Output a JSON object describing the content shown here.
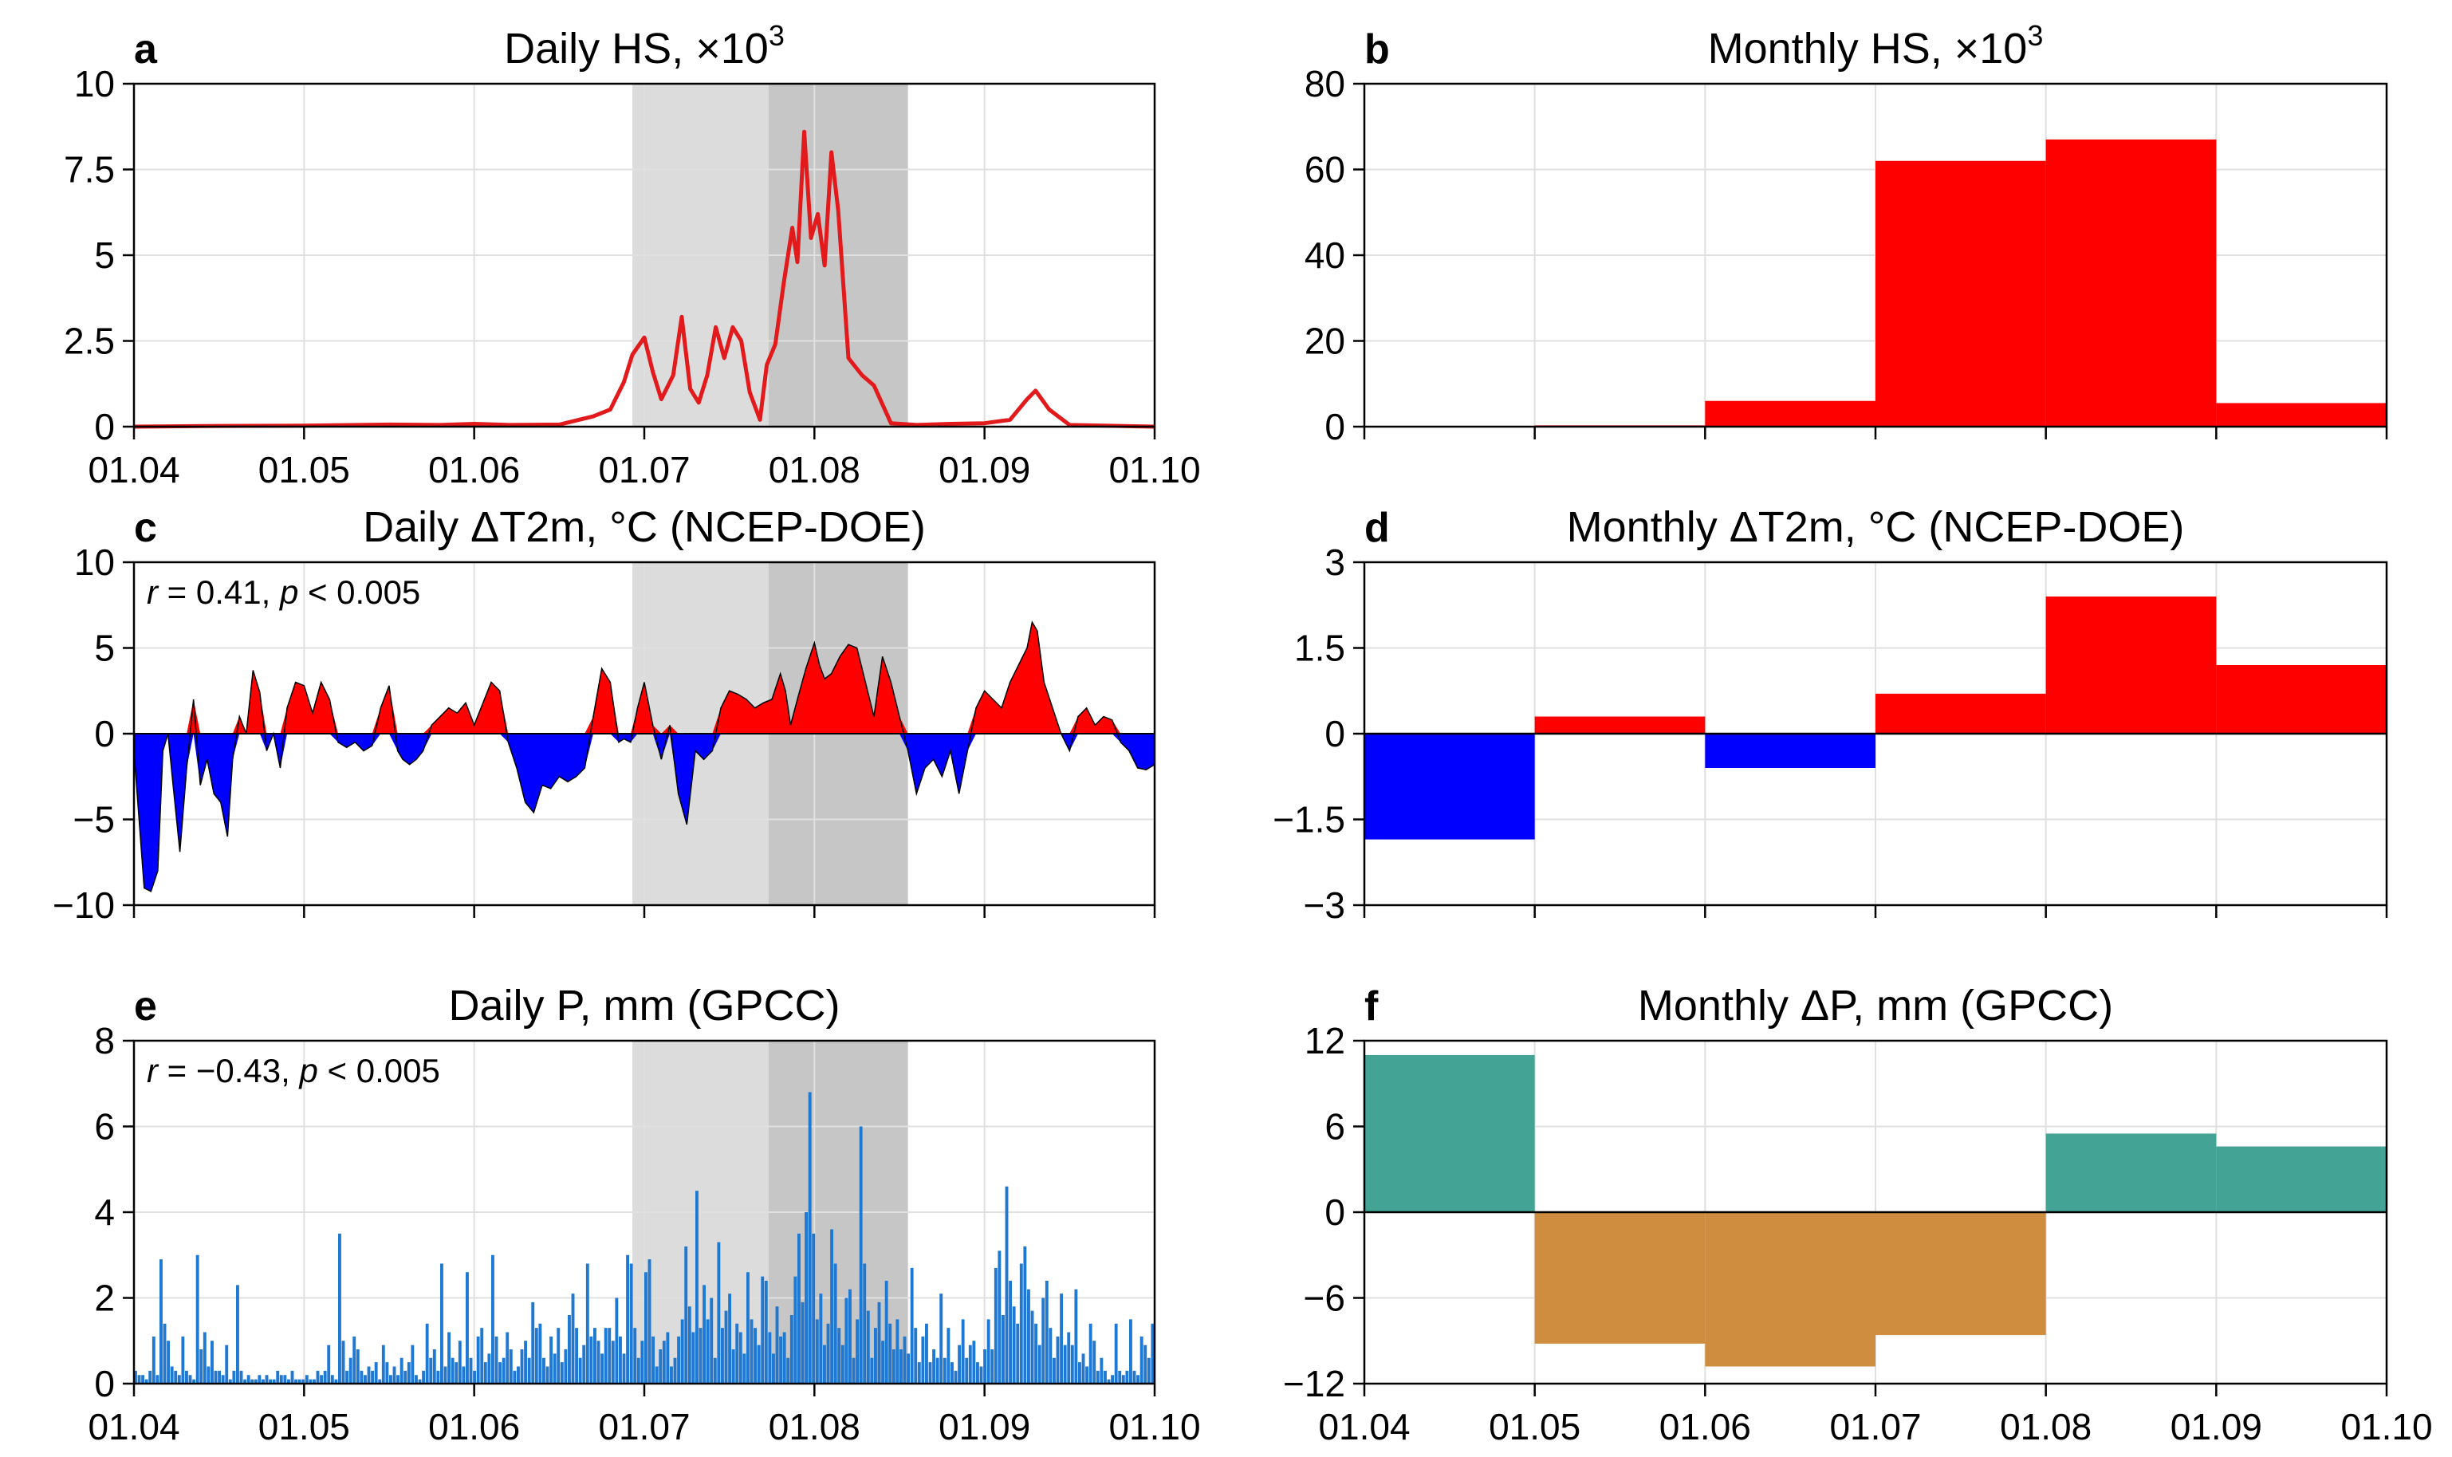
{
  "chart_data": [
    {
      "id": "a",
      "type": "line",
      "panel_label": "a",
      "title": "Daily HS, ×10",
      "title_sup": "3",
      "x_ticks": [
        "01.04",
        "01.05",
        "01.06",
        "01.07",
        "01.08",
        "01.09",
        "01.10"
      ],
      "y_ticks": [
        "0",
        "2.5",
        "5",
        "7.5",
        "10"
      ],
      "ylim": [
        0,
        10
      ],
      "shading": [
        {
          "from_month": 2.93,
          "to_month": 3.73,
          "color": "#dcdcdc"
        },
        {
          "from_month": 3.73,
          "to_month": 4.55,
          "color": "#c6c6c6"
        }
      ],
      "line_color": "#e31a1c",
      "series": [
        [
          0,
          0
        ],
        [
          0.5,
          0.02
        ],
        [
          1.0,
          0.03
        ],
        [
          1.5,
          0.06
        ],
        [
          1.8,
          0.05
        ],
        [
          2.0,
          0.08
        ],
        [
          2.2,
          0.05
        ],
        [
          2.5,
          0.06
        ],
        [
          2.7,
          0.3
        ],
        [
          2.8,
          0.5
        ],
        [
          2.88,
          1.3
        ],
        [
          2.93,
          2.1
        ],
        [
          3.0,
          2.6
        ],
        [
          3.05,
          1.6
        ],
        [
          3.1,
          0.8
        ],
        [
          3.17,
          1.5
        ],
        [
          3.22,
          3.2
        ],
        [
          3.27,
          1.1
        ],
        [
          3.32,
          0.7
        ],
        [
          3.37,
          1.5
        ],
        [
          3.42,
          2.9
        ],
        [
          3.47,
          2.0
        ],
        [
          3.52,
          2.9
        ],
        [
          3.57,
          2.5
        ],
        [
          3.62,
          1.0
        ],
        [
          3.68,
          0.2
        ],
        [
          3.72,
          1.8
        ],
        [
          3.77,
          2.4
        ],
        [
          3.82,
          4.2
        ],
        [
          3.87,
          5.8
        ],
        [
          3.9,
          4.8
        ],
        [
          3.94,
          8.6
        ],
        [
          3.98,
          5.5
        ],
        [
          4.02,
          6.2
        ],
        [
          4.06,
          4.7
        ],
        [
          4.1,
          8.0
        ],
        [
          4.14,
          6.3
        ],
        [
          4.2,
          2.0
        ],
        [
          4.28,
          1.5
        ],
        [
          4.35,
          1.2
        ],
        [
          4.45,
          0.1
        ],
        [
          4.6,
          0.05
        ],
        [
          4.8,
          0.08
        ],
        [
          5.0,
          0.1
        ],
        [
          5.15,
          0.2
        ],
        [
          5.25,
          0.8
        ],
        [
          5.3,
          1.05
        ],
        [
          5.38,
          0.5
        ],
        [
          5.5,
          0.05
        ],
        [
          6,
          0
        ]
      ]
    },
    {
      "id": "b",
      "type": "bar",
      "panel_label": "b",
      "title": "Monthly HS, ×10",
      "title_sup": "3",
      "x_ticks": [],
      "y_ticks": [
        "0",
        "20",
        "40",
        "60",
        "80"
      ],
      "ylim": [
        0,
        80
      ],
      "categories": [
        "Apr",
        "May",
        "Jun",
        "Jul",
        "Aug",
        "Sep"
      ],
      "values": [
        0,
        0.3,
        6,
        62,
        67,
        5.5
      ],
      "colors": [
        "#ff0000",
        "#ff0000",
        "#ff0000",
        "#ff0000",
        "#ff0000",
        "#ff0000"
      ]
    },
    {
      "id": "c",
      "type": "area",
      "panel_label": "c",
      "title": "Daily ΔT2m, °C (NCEP-DOE)",
      "annotation": {
        "r_sym": "r",
        "r_val": " = 0.41, ",
        "p_sym": "p",
        "p_val": " < 0.005"
      },
      "x_ticks": [],
      "y_ticks": [
        "−10",
        "−5",
        "0",
        "5",
        "10"
      ],
      "ylim": [
        -10,
        10
      ],
      "shading": [
        {
          "from_month": 2.93,
          "to_month": 3.73,
          "color": "#dcdcdc"
        },
        {
          "from_month": 3.73,
          "to_month": 4.55,
          "color": "#c6c6c6"
        }
      ],
      "pos_color": "#ff0000",
      "neg_color": "#0000ff",
      "series": [
        [
          0,
          -1
        ],
        [
          0.03,
          -5
        ],
        [
          0.06,
          -9
        ],
        [
          0.1,
          -9.2
        ],
        [
          0.14,
          -8
        ],
        [
          0.17,
          -1
        ],
        [
          0.2,
          0
        ],
        [
          0.23,
          -3
        ],
        [
          0.27,
          -6.9
        ],
        [
          0.31,
          -2
        ],
        [
          0.35,
          2
        ],
        [
          0.39,
          -3
        ],
        [
          0.43,
          -1.5
        ],
        [
          0.47,
          -3.5
        ],
        [
          0.51,
          -4
        ],
        [
          0.55,
          -6
        ],
        [
          0.58,
          -1.5
        ],
        [
          0.62,
          1.0
        ],
        [
          0.66,
          0
        ],
        [
          0.7,
          3.7
        ],
        [
          0.74,
          2.4
        ],
        [
          0.78,
          -1
        ],
        [
          0.82,
          0
        ],
        [
          0.86,
          -2
        ],
        [
          0.9,
          1.5
        ],
        [
          0.95,
          3
        ],
        [
          1.0,
          2.8
        ],
        [
          1.05,
          1.2
        ],
        [
          1.1,
          3.0
        ],
        [
          1.15,
          2.0
        ],
        [
          1.2,
          -0.5
        ],
        [
          1.25,
          -0.8
        ],
        [
          1.3,
          -0.5
        ],
        [
          1.35,
          -1
        ],
        [
          1.4,
          -0.7
        ],
        [
          1.45,
          1.5
        ],
        [
          1.5,
          2.8
        ],
        [
          1.55,
          -1
        ],
        [
          1.58,
          -1.5
        ],
        [
          1.62,
          -1.8
        ],
        [
          1.66,
          -1.5
        ],
        [
          1.7,
          -1
        ],
        [
          1.75,
          0.5
        ],
        [
          1.8,
          1.0
        ],
        [
          1.85,
          1.5
        ],
        [
          1.9,
          1.2
        ],
        [
          1.95,
          1.8
        ],
        [
          2.0,
          0.5
        ],
        [
          2.1,
          3.0
        ],
        [
          2.15,
          2.5
        ],
        [
          2.2,
          -0.5
        ],
        [
          2.25,
          -2
        ],
        [
          2.3,
          -4
        ],
        [
          2.35,
          -4.6
        ],
        [
          2.4,
          -3
        ],
        [
          2.45,
          -3.2
        ],
        [
          2.5,
          -2.5
        ],
        [
          2.55,
          -2.8
        ],
        [
          2.6,
          -2.5
        ],
        [
          2.65,
          -2
        ],
        [
          2.7,
          1.0
        ],
        [
          2.75,
          3.8
        ],
        [
          2.8,
          3.0
        ],
        [
          2.85,
          -0.5
        ],
        [
          2.88,
          -0.3
        ],
        [
          2.92,
          -0.5
        ],
        [
          2.96,
          1.5
        ],
        [
          3.0,
          3.0
        ],
        [
          3.05,
          0.5
        ],
        [
          3.1,
          -1.5
        ],
        [
          3.15,
          0.5
        ],
        [
          3.2,
          -3.5
        ],
        [
          3.25,
          -5.3
        ],
        [
          3.3,
          -1
        ],
        [
          3.35,
          -1.5
        ],
        [
          3.4,
          -1.0
        ],
        [
          3.45,
          1.5
        ],
        [
          3.5,
          2.5
        ],
        [
          3.55,
          2.3
        ],
        [
          3.6,
          2.0
        ],
        [
          3.65,
          1.5
        ],
        [
          3.7,
          1.8
        ],
        [
          3.75,
          2.0
        ],
        [
          3.8,
          3.5
        ],
        [
          3.83,
          2.5
        ],
        [
          3.86,
          0.5
        ],
        [
          3.9,
          2.0
        ],
        [
          3.95,
          3.8
        ],
        [
          4.0,
          5.3
        ],
        [
          4.03,
          4.0
        ],
        [
          4.06,
          3.2
        ],
        [
          4.1,
          3.5
        ],
        [
          4.15,
          4.5
        ],
        [
          4.2,
          5.2
        ],
        [
          4.25,
          5.0
        ],
        [
          4.3,
          3.0
        ],
        [
          4.35,
          1.0
        ],
        [
          4.4,
          4.5
        ],
        [
          4.45,
          3.0
        ],
        [
          4.5,
          1.0
        ],
        [
          4.55,
          -1
        ],
        [
          4.6,
          -3.5
        ],
        [
          4.65,
          -2
        ],
        [
          4.7,
          -1.5
        ],
        [
          4.75,
          -2.5
        ],
        [
          4.8,
          -1
        ],
        [
          4.85,
          -3.5
        ],
        [
          4.9,
          -1
        ],
        [
          4.95,
          1.5
        ],
        [
          5.0,
          2.5
        ],
        [
          5.05,
          2.0
        ],
        [
          5.1,
          1.5
        ],
        [
          5.15,
          3.0
        ],
        [
          5.2,
          4.0
        ],
        [
          5.25,
          5.0
        ],
        [
          5.28,
          6.5
        ],
        [
          5.31,
          6.0
        ],
        [
          5.35,
          3.0
        ],
        [
          5.4,
          1.5
        ],
        [
          5.45,
          0
        ],
        [
          5.5,
          -1
        ],
        [
          5.55,
          1.0
        ],
        [
          5.6,
          1.5
        ],
        [
          5.65,
          0.5
        ],
        [
          5.7,
          1.0
        ],
        [
          5.75,
          0.8
        ],
        [
          5.8,
          -0.5
        ],
        [
          5.85,
          -1
        ],
        [
          5.9,
          -2
        ],
        [
          5.95,
          -2.1
        ],
        [
          6,
          -1.8
        ]
      ]
    },
    {
      "id": "d",
      "type": "bar",
      "panel_label": "d",
      "title": "Monthly ΔT2m, °C (NCEP-DOE)",
      "x_ticks": [],
      "y_ticks": [
        "−3",
        "−1.5",
        "0",
        "1.5",
        "3"
      ],
      "ylim": [
        -3,
        3
      ],
      "categories": [
        "Apr",
        "May",
        "Jun",
        "Jul",
        "Aug",
        "Sep"
      ],
      "values": [
        -1.85,
        0.3,
        -0.6,
        0.7,
        2.4,
        1.2
      ],
      "colors": [
        "#0000ff",
        "#ff0000",
        "#0000ff",
        "#ff0000",
        "#ff0000",
        "#ff0000"
      ]
    },
    {
      "id": "e",
      "type": "bar",
      "panel_label": "e",
      "title": "Daily P, mm (GPCC)",
      "annotation": {
        "r_sym": "r",
        "r_val": " = −0.43, ",
        "p_sym": "p",
        "p_val": " < 0.005"
      },
      "x_ticks": [
        "01.04",
        "01.05",
        "01.06",
        "01.07",
        "01.08",
        "01.09",
        "01.10"
      ],
      "y_ticks": [
        "0",
        "2",
        "4",
        "6",
        "8"
      ],
      "ylim": [
        0,
        8
      ],
      "shading": [
        {
          "from_month": 2.93,
          "to_month": 3.73,
          "color": "#dcdcdc"
        },
        {
          "from_month": 3.73,
          "to_month": 4.55,
          "color": "#c6c6c6"
        }
      ],
      "bar_color": "#1f78d1",
      "values": [
        0.3,
        0.2,
        0.2,
        0.1,
        0.3,
        1.1,
        0.2,
        2.9,
        1.4,
        1.0,
        0.4,
        0.3,
        0.2,
        1.1,
        0.3,
        0.2,
        0.1,
        3.0,
        0.8,
        1.2,
        0.4,
        1.0,
        0.3,
        0.3,
        0.2,
        0.9,
        0.1,
        0.3,
        2.3,
        0.3,
        0.1,
        0.2,
        0.1,
        0.1,
        0.2,
        0.1,
        0.2,
        0.1,
        0.1,
        0.3,
        0.2,
        0.2,
        0.1,
        0.3,
        0.1,
        0.1,
        0.1,
        0.2,
        0.1,
        0.1,
        0.3,
        0.2,
        0.3,
        0.9,
        0.2,
        0.1,
        3.5,
        1.0,
        0.3,
        0.6,
        1.1,
        0.8,
        0.3,
        0.2,
        0.4,
        0.3,
        0.5,
        0.1,
        0.9,
        0.5,
        0.2,
        0.4,
        0.2,
        0.6,
        0.3,
        0.5,
        0.9,
        0.2,
        0.1,
        0.3,
        1.4,
        0.6,
        0.8,
        0.3,
        2.8,
        0.4,
        1.2,
        0.6,
        0.5,
        1.0,
        0.4,
        2.6,
        0.6,
        0.3,
        1.1,
        1.3,
        0.5,
        0.7,
        3.0,
        1.1,
        0.5,
        0.6,
        1.2,
        0.8,
        0.3,
        0.4,
        0.8,
        1.0,
        0.6,
        1.9,
        1.3,
        1.4,
        0.6,
        0.4,
        1.1,
        0.7,
        1.3,
        0.5,
        0.8,
        1.6,
        2.1,
        1.3,
        0.6,
        0.9,
        2.8,
        1.1,
        1.3,
        1.0,
        0.7,
        1.3,
        1.3,
        1.0,
        2.0,
        1.1,
        0.7,
        3.0,
        2.8,
        1.3,
        0.6,
        1.0,
        2.6,
        2.9,
        1.1,
        0.4,
        0.8,
        1.0,
        1.2,
        0.4,
        0.6,
        1.1,
        1.5,
        3.2,
        1.8,
        1.2,
        4.5,
        1.3,
        2.3,
        1.5,
        2.0,
        0.6,
        3.3,
        1.3,
        1.7,
        2.1,
        0.8,
        1.4,
        1.2,
        0.7,
        2.6,
        1.5,
        1.3,
        0.9,
        2.5,
        2.4,
        1.2,
        0.7,
        1.8,
        1.1,
        1.2,
        0.6,
        1.6,
        2.5,
        3.5,
        1.9,
        4.0,
        6.8,
        3.5,
        1.5,
        2.1,
        0.9,
        1.4,
        3.6,
        2.8,
        1.3,
        0.9,
        2.0,
        2.2,
        0.6,
        1.5,
        6.0,
        2.8,
        1.7,
        0.6,
        1.3,
        1.9,
        1.0,
        2.4,
        1.4,
        0.8,
        1.5,
        0.8,
        1.1,
        0.7,
        2.7,
        1.3,
        0.5,
        1.1,
        1.4,
        0.5,
        0.8,
        0.6,
        2.1,
        0.6,
        1.3,
        0.5,
        0.3,
        0.9,
        1.5,
        0.6,
        0.9,
        1.0,
        0.5,
        0.4,
        0.8,
        1.5,
        0.8,
        2.7,
        3.1,
        1.6,
        4.6,
        2.4,
        1.8,
        1.4,
        2.8,
        3.2,
        2.2,
        1.7,
        1.4,
        0.9,
        2.0,
        2.4,
        1.3,
        0.6,
        1.1,
        2.1,
        0.9,
        1.2,
        0.9,
        2.2,
        0.5,
        0.7,
        0.4,
        1.4,
        1.0,
        0.3,
        0.6,
        0.3,
        0.1,
        0.2,
        1.4,
        0.3,
        0.2,
        0.3,
        1.5,
        0.3,
        0.2,
        1.1,
        0.9,
        0.6,
        1.4
      ]
    },
    {
      "id": "f",
      "type": "bar",
      "panel_label": "f",
      "title": "Monthly ΔP, mm (GPCC)",
      "x_ticks": [
        "01.04",
        "01.05",
        "01.06",
        "01.07",
        "01.08",
        "01.09",
        "01.10"
      ],
      "y_ticks": [
        "−12",
        "−6",
        "0",
        "6",
        "12"
      ],
      "ylim": [
        -12,
        12
      ],
      "categories": [
        "Apr",
        "May",
        "Jun",
        "Jul",
        "Aug",
        "Sep"
      ],
      "values": [
        11.0,
        -9.2,
        -10.8,
        -8.6,
        5.5,
        4.6
      ],
      "colors": [
        "#43a496",
        "#cf8e3f",
        "#cf8e3f",
        "#cf8e3f",
        "#43a496",
        "#43a496"
      ]
    }
  ]
}
